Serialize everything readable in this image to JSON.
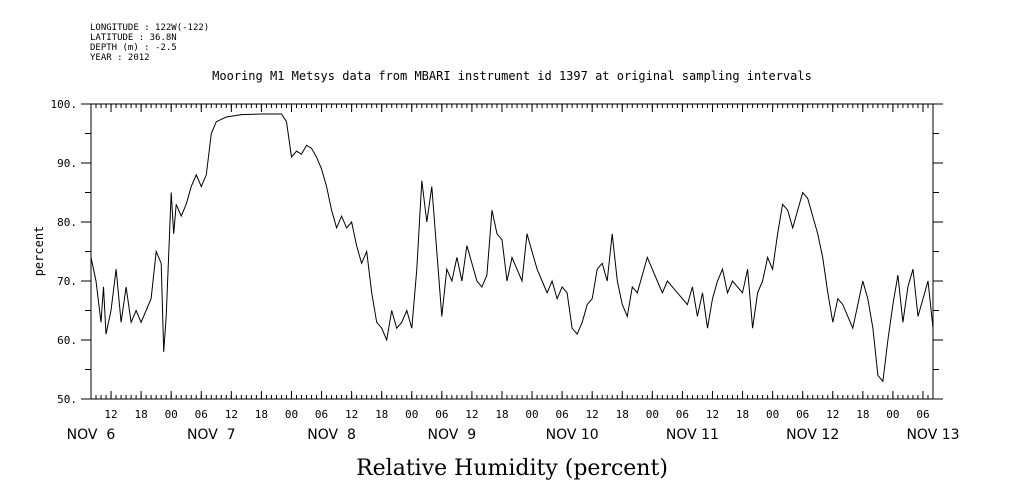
{
  "metadata": [
    "LONGITUDE : 122W(-122)",
    "LATITUDE : 36.8N",
    "DEPTH (m) : -2.5",
    "YEAR : 2012"
  ],
  "chart_data": {
    "type": "line",
    "title": "Mooring M1 Metsys data from MBARI instrument id 1397 at original sampling intervals",
    "xlabel": "Relative Humidity (percent)",
    "ylabel": "percent",
    "ylim": [
      50,
      100
    ],
    "yticks": [
      50,
      60,
      70,
      80,
      90,
      100
    ],
    "ytick_labels": [
      "50.",
      "60.",
      "70.",
      "80.",
      "90.",
      "100."
    ],
    "xlim": [
      "2012-11-06T08:00",
      "2012-11-13T08:00"
    ],
    "hour_ticks": [
      {
        "t": "2012-11-06T12:00",
        "label": "12"
      },
      {
        "t": "2012-11-06T18:00",
        "label": "18"
      },
      {
        "t": "2012-11-07T00:00",
        "label": "00"
      },
      {
        "t": "2012-11-07T06:00",
        "label": "06"
      },
      {
        "t": "2012-11-07T12:00",
        "label": "12"
      },
      {
        "t": "2012-11-07T18:00",
        "label": "18"
      },
      {
        "t": "2012-11-08T00:00",
        "label": "00"
      },
      {
        "t": "2012-11-08T06:00",
        "label": "06"
      },
      {
        "t": "2012-11-08T12:00",
        "label": "12"
      },
      {
        "t": "2012-11-08T18:00",
        "label": "18"
      },
      {
        "t": "2012-11-09T00:00",
        "label": "00"
      },
      {
        "t": "2012-11-09T06:00",
        "label": "06"
      },
      {
        "t": "2012-11-09T12:00",
        "label": "12"
      },
      {
        "t": "2012-11-09T18:00",
        "label": "18"
      },
      {
        "t": "2012-11-10T00:00",
        "label": "00"
      },
      {
        "t": "2012-11-10T06:00",
        "label": "06"
      },
      {
        "t": "2012-11-10T12:00",
        "label": "12"
      },
      {
        "t": "2012-11-10T18:00",
        "label": "18"
      },
      {
        "t": "2012-11-11T00:00",
        "label": "00"
      },
      {
        "t": "2012-11-11T06:00",
        "label": "06"
      },
      {
        "t": "2012-11-11T12:00",
        "label": "12"
      },
      {
        "t": "2012-11-11T18:00",
        "label": "18"
      },
      {
        "t": "2012-11-12T00:00",
        "label": "00"
      },
      {
        "t": "2012-11-12T06:00",
        "label": "06"
      },
      {
        "t": "2012-11-12T12:00",
        "label": "12"
      },
      {
        "t": "2012-11-12T18:00",
        "label": "18"
      },
      {
        "t": "2012-11-13T00:00",
        "label": "00"
      },
      {
        "t": "2012-11-13T06:00",
        "label": "06"
      }
    ],
    "date_labels": [
      {
        "t": "2012-11-06T08:00",
        "label": "NOV  6"
      },
      {
        "t": "2012-11-07T08:00",
        "label": "NOV  7"
      },
      {
        "t": "2012-11-08T08:00",
        "label": "NOV  8"
      },
      {
        "t": "2012-11-09T08:00",
        "label": "NOV  9"
      },
      {
        "t": "2012-11-10T08:00",
        "label": "NOV 10"
      },
      {
        "t": "2012-11-11T08:00",
        "label": "NOV 11"
      },
      {
        "t": "2012-11-12T08:00",
        "label": "NOV 12"
      },
      {
        "t": "2012-11-13T08:00",
        "label": "NOV 13"
      }
    ],
    "grid": false,
    "series": [
      {
        "color": "#000000",
        "points": [
          [
            "2012-11-06T08:00",
            74
          ],
          [
            "2012-11-06T09:00",
            70
          ],
          [
            "2012-11-06T10:00",
            63
          ],
          [
            "2012-11-06T10:30",
            69
          ],
          [
            "2012-11-06T11:00",
            61
          ],
          [
            "2012-11-06T12:00",
            65
          ],
          [
            "2012-11-06T13:00",
            72
          ],
          [
            "2012-11-06T14:00",
            63
          ],
          [
            "2012-11-06T15:00",
            69
          ],
          [
            "2012-11-06T16:00",
            63
          ],
          [
            "2012-11-06T17:00",
            65
          ],
          [
            "2012-11-06T18:00",
            63
          ],
          [
            "2012-11-06T19:00",
            65
          ],
          [
            "2012-11-06T20:00",
            67
          ],
          [
            "2012-11-06T21:00",
            75
          ],
          [
            "2012-11-06T22:00",
            73
          ],
          [
            "2012-11-06T22:30",
            58
          ],
          [
            "2012-11-06T23:00",
            64
          ],
          [
            "2012-11-07T00:00",
            85
          ],
          [
            "2012-11-07T00:30",
            78
          ],
          [
            "2012-11-07T01:00",
            83
          ],
          [
            "2012-11-07T02:00",
            81
          ],
          [
            "2012-11-07T03:00",
            83
          ],
          [
            "2012-11-07T04:00",
            86
          ],
          [
            "2012-11-07T05:00",
            88
          ],
          [
            "2012-11-07T06:00",
            86
          ],
          [
            "2012-11-07T07:00",
            88
          ],
          [
            "2012-11-07T08:00",
            95
          ],
          [
            "2012-11-07T09:00",
            97
          ],
          [
            "2012-11-07T11:00",
            97.8
          ],
          [
            "2012-11-07T14:00",
            98.2
          ],
          [
            "2012-11-07T18:00",
            98.3
          ],
          [
            "2012-11-07T22:00",
            98.3
          ],
          [
            "2012-11-07T23:00",
            97
          ],
          [
            "2012-11-08T00:00",
            91
          ],
          [
            "2012-11-08T01:00",
            92
          ],
          [
            "2012-11-08T02:00",
            91.5
          ],
          [
            "2012-11-08T03:00",
            93
          ],
          [
            "2012-11-08T04:00",
            92.5
          ],
          [
            "2012-11-08T05:00",
            91
          ],
          [
            "2012-11-08T06:00",
            89
          ],
          [
            "2012-11-08T07:00",
            86
          ],
          [
            "2012-11-08T08:00",
            82
          ],
          [
            "2012-11-08T09:00",
            79
          ],
          [
            "2012-11-08T10:00",
            81
          ],
          [
            "2012-11-08T11:00",
            79
          ],
          [
            "2012-11-08T12:00",
            80
          ],
          [
            "2012-11-08T13:00",
            76
          ],
          [
            "2012-11-08T14:00",
            73
          ],
          [
            "2012-11-08T15:00",
            75
          ],
          [
            "2012-11-08T16:00",
            68
          ],
          [
            "2012-11-08T17:00",
            63
          ],
          [
            "2012-11-08T18:00",
            62
          ],
          [
            "2012-11-08T19:00",
            60
          ],
          [
            "2012-11-08T20:00",
            65
          ],
          [
            "2012-11-08T21:00",
            62
          ],
          [
            "2012-11-08T22:00",
            63
          ],
          [
            "2012-11-08T23:00",
            65
          ],
          [
            "2012-11-09T00:00",
            62
          ],
          [
            "2012-11-09T01:00",
            72
          ],
          [
            "2012-11-09T02:00",
            87
          ],
          [
            "2012-11-09T03:00",
            80
          ],
          [
            "2012-11-09T04:00",
            86
          ],
          [
            "2012-11-09T05:00",
            75
          ],
          [
            "2012-11-09T06:00",
            64
          ],
          [
            "2012-11-09T07:00",
            72
          ],
          [
            "2012-11-09T08:00",
            70
          ],
          [
            "2012-11-09T09:00",
            74
          ],
          [
            "2012-11-09T10:00",
            70
          ],
          [
            "2012-11-09T11:00",
            76
          ],
          [
            "2012-11-09T12:00",
            73
          ],
          [
            "2012-11-09T13:00",
            70
          ],
          [
            "2012-11-09T14:00",
            69
          ],
          [
            "2012-11-09T15:00",
            71
          ],
          [
            "2012-11-09T16:00",
            82
          ],
          [
            "2012-11-09T17:00",
            78
          ],
          [
            "2012-11-09T18:00",
            77
          ],
          [
            "2012-11-09T19:00",
            70
          ],
          [
            "2012-11-09T20:00",
            74
          ],
          [
            "2012-11-09T21:00",
            72
          ],
          [
            "2012-11-09T22:00",
            70
          ],
          [
            "2012-11-09T23:00",
            78
          ],
          [
            "2012-11-10T00:00",
            75
          ],
          [
            "2012-11-10T01:00",
            72
          ],
          [
            "2012-11-10T02:00",
            70
          ],
          [
            "2012-11-10T03:00",
            68
          ],
          [
            "2012-11-10T04:00",
            70
          ],
          [
            "2012-11-10T05:00",
            67
          ],
          [
            "2012-11-10T06:00",
            69
          ],
          [
            "2012-11-10T07:00",
            68
          ],
          [
            "2012-11-10T08:00",
            62
          ],
          [
            "2012-11-10T09:00",
            61
          ],
          [
            "2012-11-10T10:00",
            63
          ],
          [
            "2012-11-10T11:00",
            66
          ],
          [
            "2012-11-10T12:00",
            67
          ],
          [
            "2012-11-10T13:00",
            72
          ],
          [
            "2012-11-10T14:00",
            73
          ],
          [
            "2012-11-10T15:00",
            70
          ],
          [
            "2012-11-10T16:00",
            78
          ],
          [
            "2012-11-10T17:00",
            70
          ],
          [
            "2012-11-10T18:00",
            66
          ],
          [
            "2012-11-10T19:00",
            64
          ],
          [
            "2012-11-10T20:00",
            69
          ],
          [
            "2012-11-10T21:00",
            68
          ],
          [
            "2012-11-10T22:00",
            71
          ],
          [
            "2012-11-10T23:00",
            74
          ],
          [
            "2012-11-11T00:00",
            72
          ],
          [
            "2012-11-11T01:00",
            70
          ],
          [
            "2012-11-11T02:00",
            68
          ],
          [
            "2012-11-11T03:00",
            70
          ],
          [
            "2012-11-11T04:00",
            69
          ],
          [
            "2012-11-11T05:00",
            68
          ],
          [
            "2012-11-11T06:00",
            67
          ],
          [
            "2012-11-11T07:00",
            66
          ],
          [
            "2012-11-11T08:00",
            69
          ],
          [
            "2012-11-11T09:00",
            64
          ],
          [
            "2012-11-11T10:00",
            68
          ],
          [
            "2012-11-11T11:00",
            62
          ],
          [
            "2012-11-11T12:00",
            67
          ],
          [
            "2012-11-11T13:00",
            70
          ],
          [
            "2012-11-11T14:00",
            72
          ],
          [
            "2012-11-11T15:00",
            68
          ],
          [
            "2012-11-11T16:00",
            70
          ],
          [
            "2012-11-11T17:00",
            69
          ],
          [
            "2012-11-11T18:00",
            68
          ],
          [
            "2012-11-11T19:00",
            72
          ],
          [
            "2012-11-11T20:00",
            62
          ],
          [
            "2012-11-11T21:00",
            68
          ],
          [
            "2012-11-11T22:00",
            70
          ],
          [
            "2012-11-11T23:00",
            74
          ],
          [
            "2012-11-12T00:00",
            72
          ],
          [
            "2012-11-12T01:00",
            78
          ],
          [
            "2012-11-12T02:00",
            83
          ],
          [
            "2012-11-12T03:00",
            82
          ],
          [
            "2012-11-12T04:00",
            79
          ],
          [
            "2012-11-12T05:00",
            82
          ],
          [
            "2012-11-12T06:00",
            85
          ],
          [
            "2012-11-12T07:00",
            84
          ],
          [
            "2012-11-12T08:00",
            81
          ],
          [
            "2012-11-12T09:00",
            78
          ],
          [
            "2012-11-12T10:00",
            74
          ],
          [
            "2012-11-12T11:00",
            68
          ],
          [
            "2012-11-12T12:00",
            63
          ],
          [
            "2012-11-12T13:00",
            67
          ],
          [
            "2012-11-12T14:00",
            66
          ],
          [
            "2012-11-12T15:00",
            64
          ],
          [
            "2012-11-12T16:00",
            62
          ],
          [
            "2012-11-12T17:00",
            66
          ],
          [
            "2012-11-12T18:00",
            70
          ],
          [
            "2012-11-12T19:00",
            67
          ],
          [
            "2012-11-12T20:00",
            62
          ],
          [
            "2012-11-12T21:00",
            54
          ],
          [
            "2012-11-12T22:00",
            53
          ],
          [
            "2012-11-12T23:00",
            60
          ],
          [
            "2012-11-13T00:00",
            66
          ],
          [
            "2012-11-13T01:00",
            71
          ],
          [
            "2012-11-13T02:00",
            63
          ],
          [
            "2012-11-13T03:00",
            69
          ],
          [
            "2012-11-13T04:00",
            72
          ],
          [
            "2012-11-13T05:00",
            64
          ],
          [
            "2012-11-13T06:00",
            67
          ],
          [
            "2012-11-13T07:00",
            70
          ],
          [
            "2012-11-13T08:00",
            62
          ]
        ]
      }
    ]
  }
}
